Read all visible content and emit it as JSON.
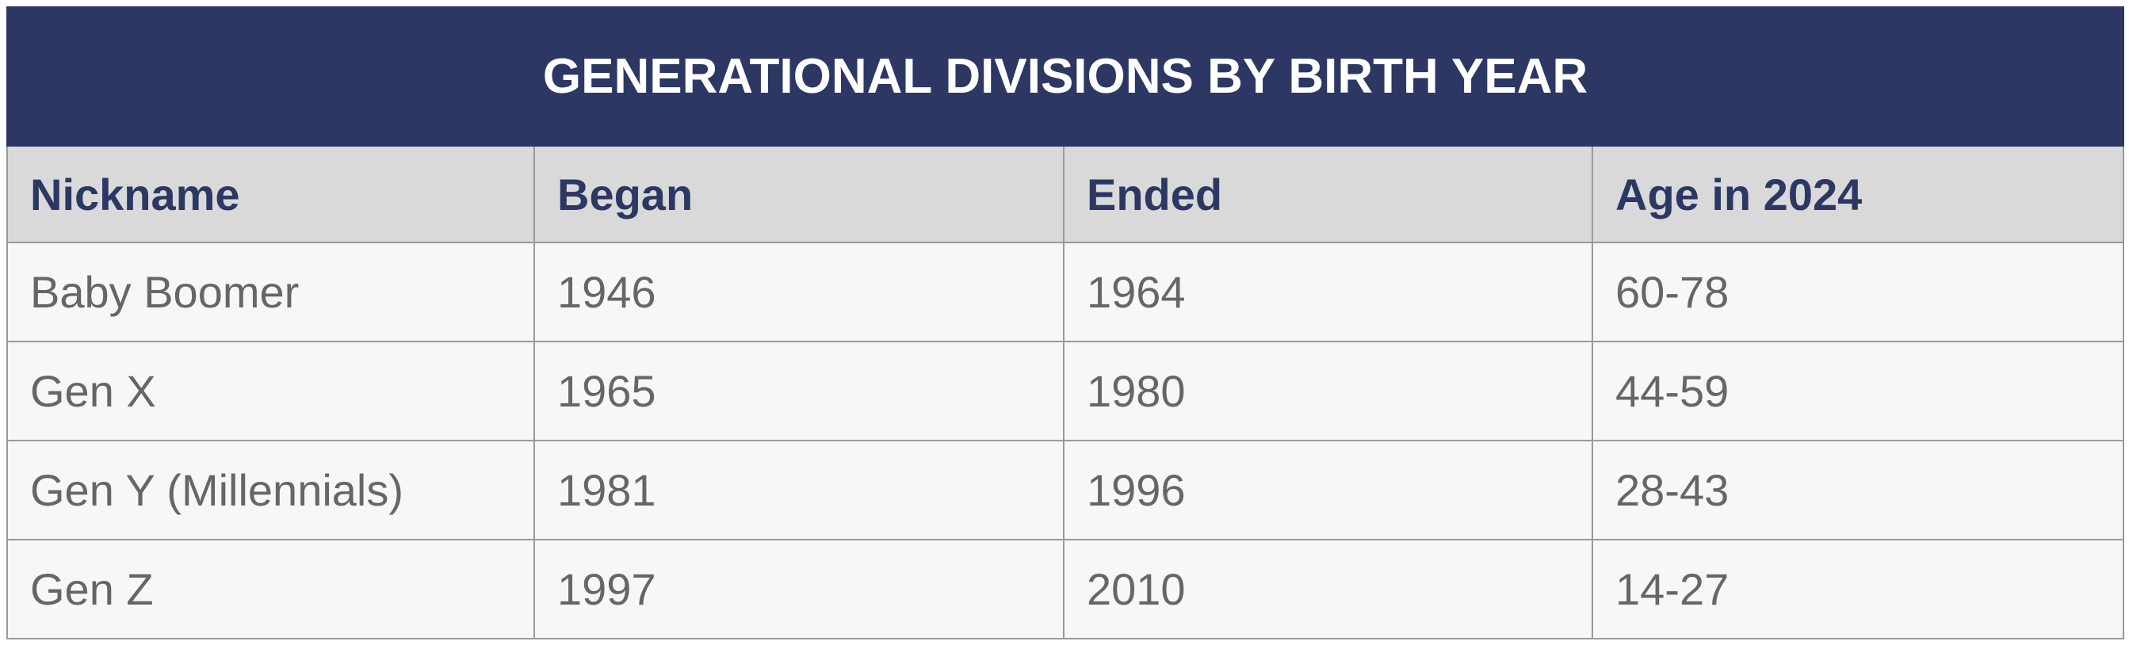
{
  "table": {
    "title": "GENERATIONAL DIVISIONS BY BIRTH YEAR",
    "columns": [
      "Nickname",
      "Began",
      "Ended",
      "Age in 2024"
    ],
    "rows": [
      [
        "Baby Boomer",
        "1946",
        "1964",
        "60-78"
      ],
      [
        "Gen X",
        "1965",
        "1980",
        "44-59"
      ],
      [
        "Gen Y (Millennials)",
        "1981",
        "1996",
        "28-43"
      ],
      [
        "Gen Z",
        "1997",
        "2010",
        "14-27"
      ]
    ]
  }
}
